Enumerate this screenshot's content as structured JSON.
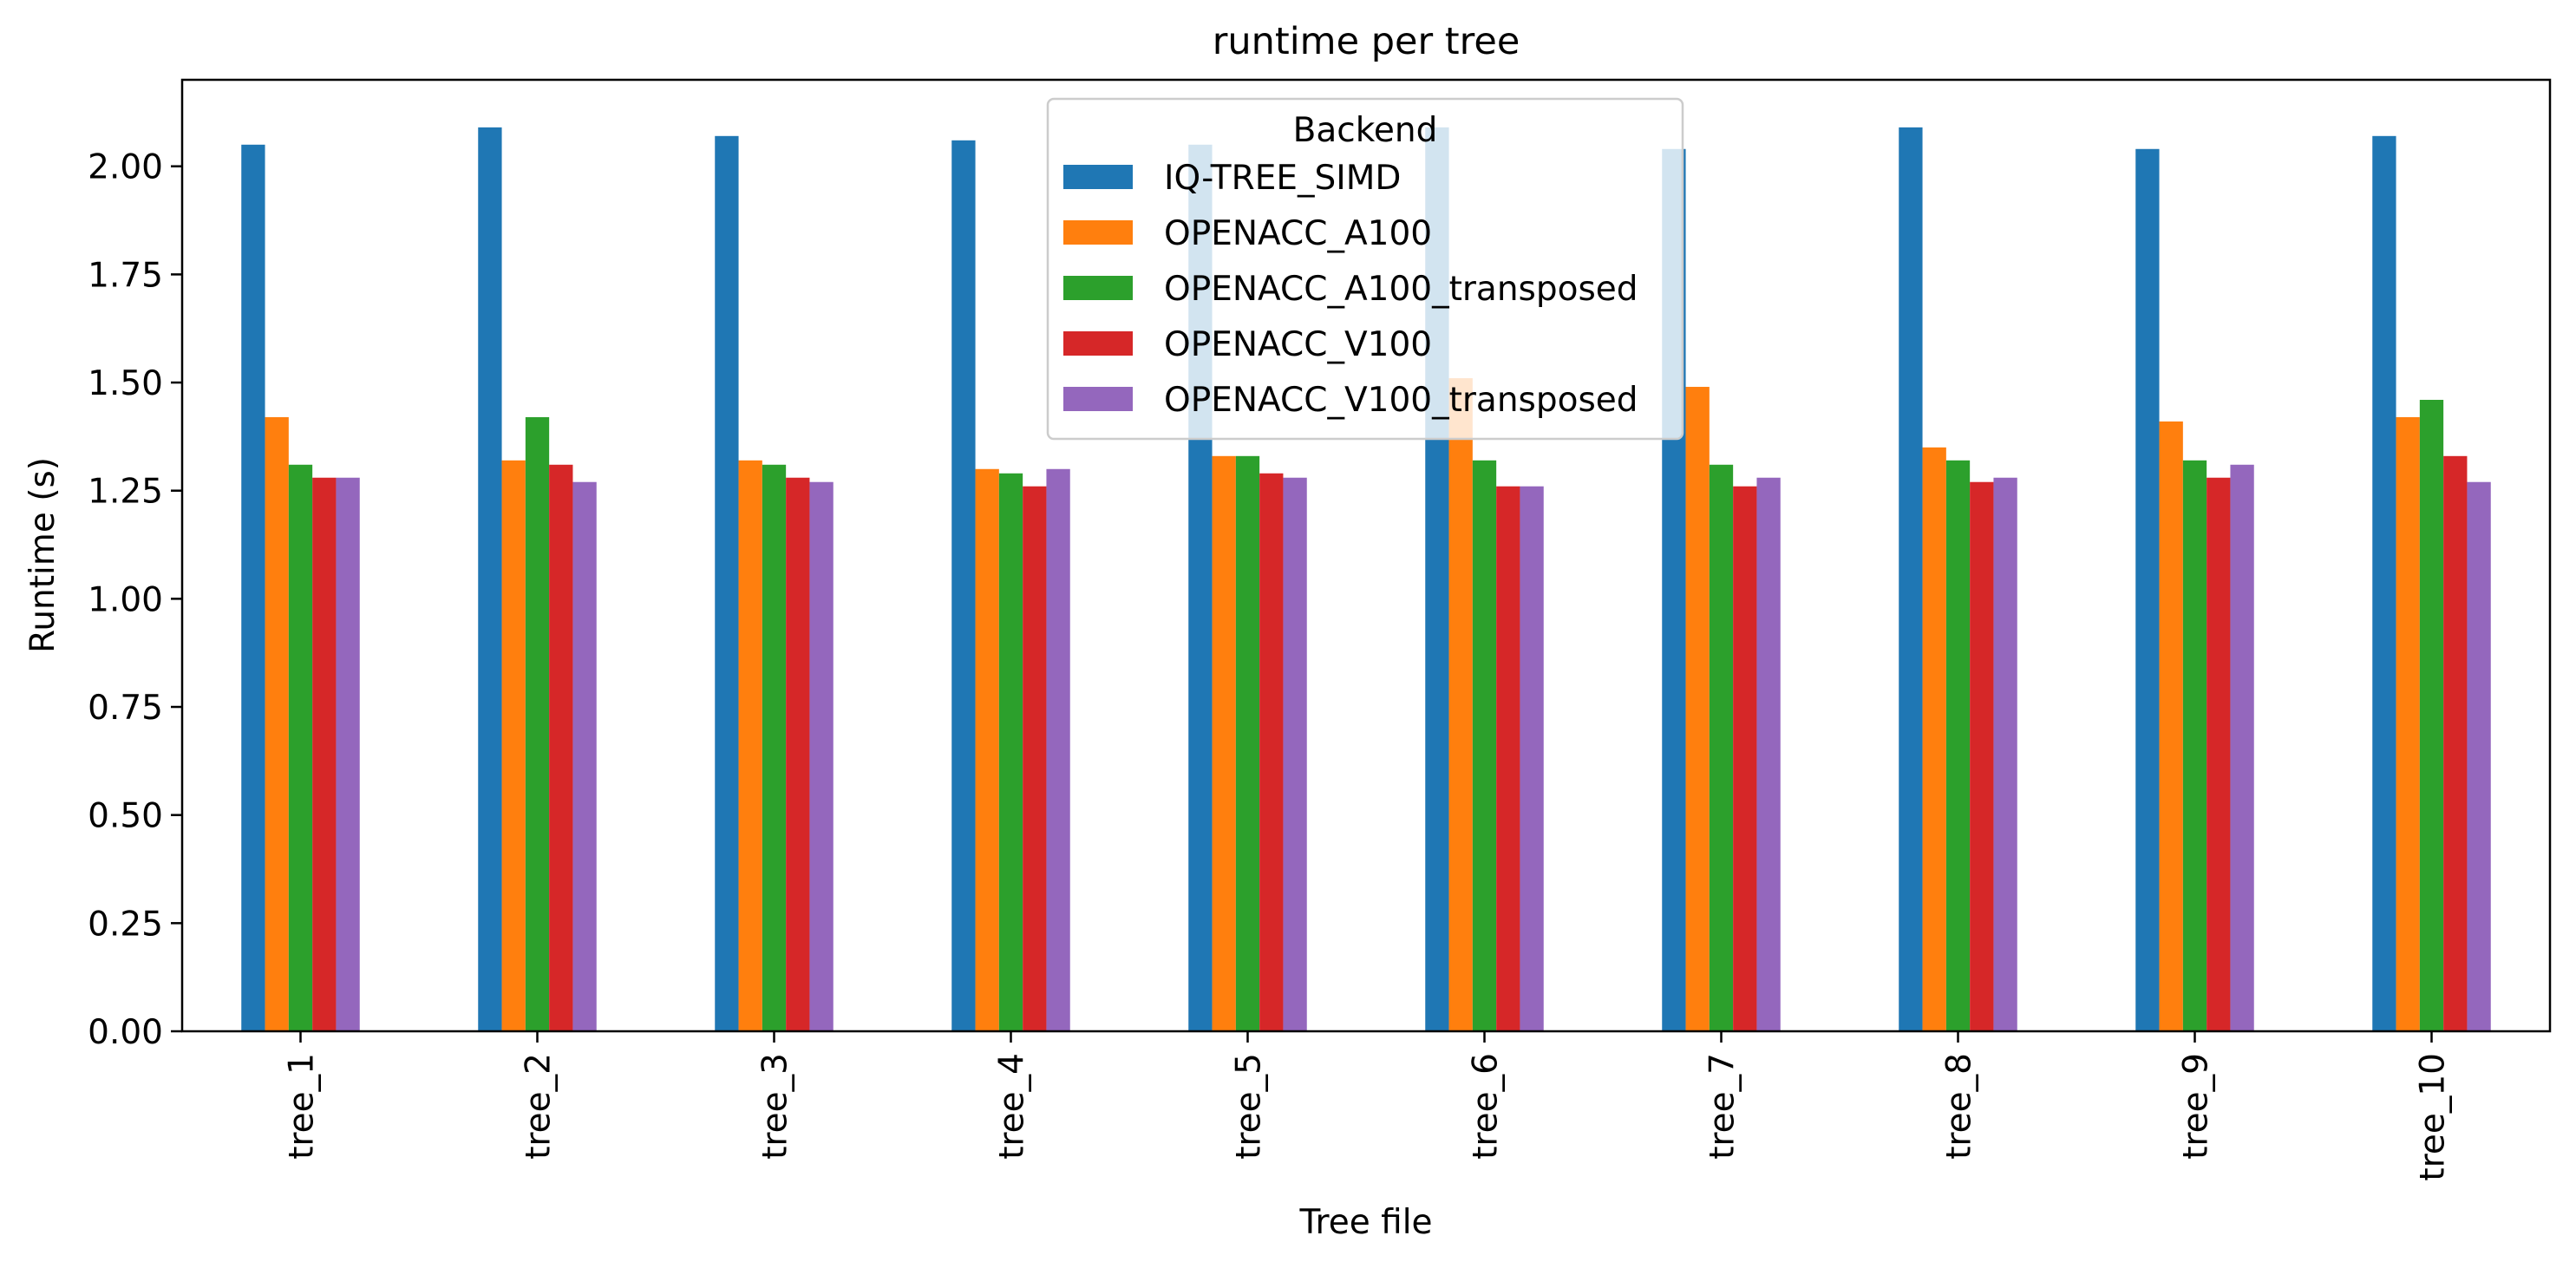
{
  "chart_data": {
    "type": "bar",
    "title": "runtime per tree",
    "xlabel": "Tree file",
    "ylabel": "Runtime (s)",
    "ylim": [
      0,
      2.2
    ],
    "yticks": [
      "0.00",
      "0.25",
      "0.50",
      "0.75",
      "1.00",
      "1.25",
      "1.50",
      "1.75",
      "2.00"
    ],
    "grid": false,
    "legend": {
      "title": "Backend",
      "placement": "top-center"
    },
    "categories": [
      "tree_1",
      "tree_2",
      "tree_3",
      "tree_4",
      "tree_5",
      "tree_6",
      "tree_7",
      "tree_8",
      "tree_9",
      "tree_10"
    ],
    "series": [
      {
        "name": "IQ-TREE_SIMD",
        "color": "#1f77b4",
        "values": [
          2.05,
          2.09,
          2.07,
          2.06,
          2.05,
          2.09,
          2.04,
          2.09,
          2.04,
          2.07
        ]
      },
      {
        "name": "OPENACC_A100",
        "color": "#ff7f0e",
        "values": [
          1.42,
          1.32,
          1.32,
          1.3,
          1.33,
          1.51,
          1.49,
          1.35,
          1.41,
          1.42
        ]
      },
      {
        "name": "OPENACC_A100_transposed",
        "color": "#2ca02c",
        "values": [
          1.31,
          1.42,
          1.31,
          1.29,
          1.33,
          1.32,
          1.31,
          1.32,
          1.32,
          1.46
        ]
      },
      {
        "name": "OPENACC_V100",
        "color": "#d62728",
        "values": [
          1.28,
          1.31,
          1.28,
          1.26,
          1.29,
          1.26,
          1.26,
          1.27,
          1.28,
          1.33
        ]
      },
      {
        "name": "OPENACC_V100_transposed",
        "color": "#9467bd",
        "values": [
          1.28,
          1.27,
          1.27,
          1.3,
          1.28,
          1.26,
          1.28,
          1.28,
          1.31,
          1.27
        ]
      }
    ]
  }
}
